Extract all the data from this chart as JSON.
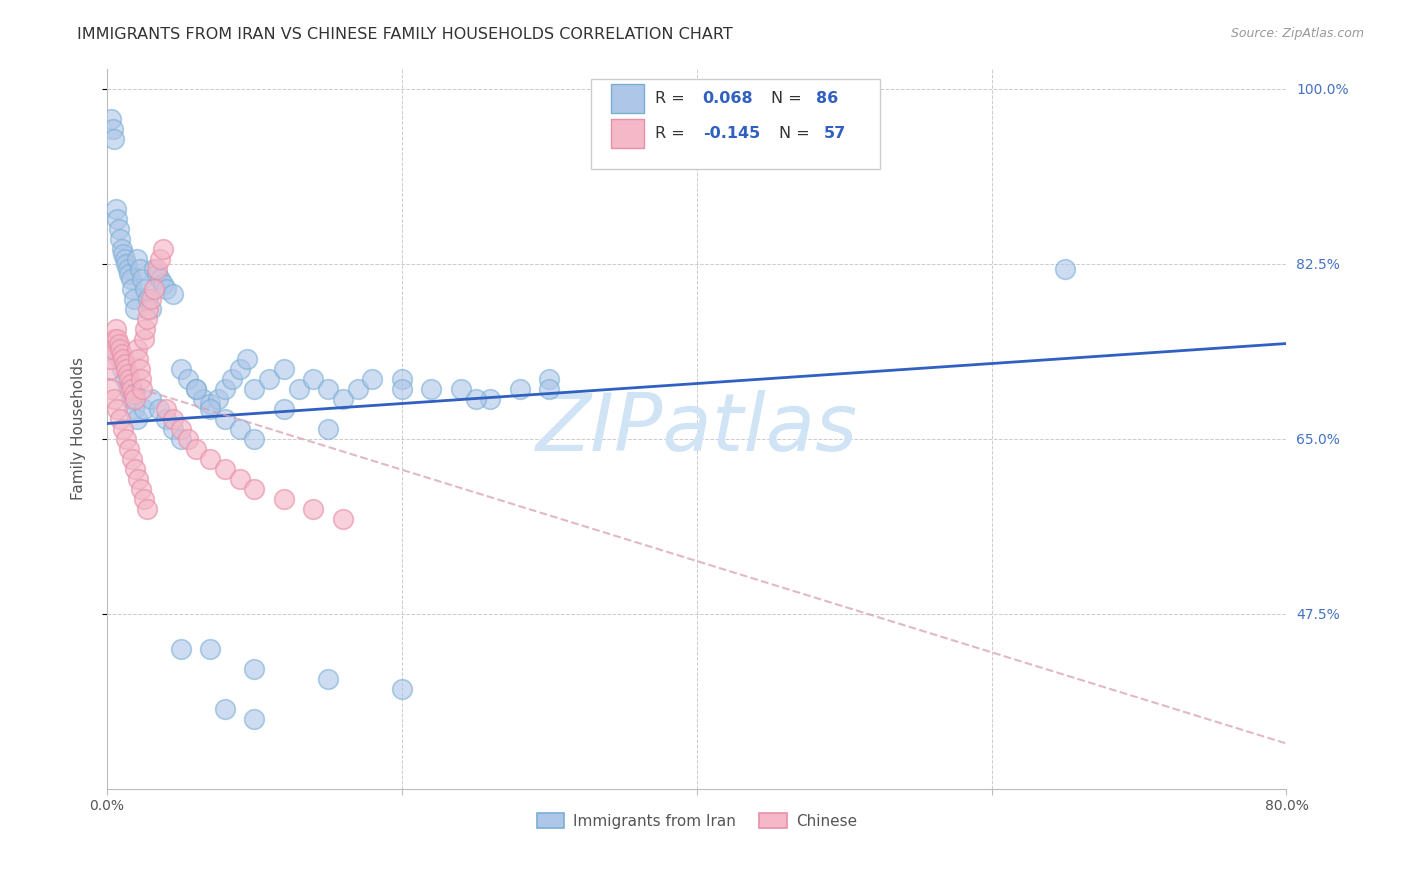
{
  "title": "IMMIGRANTS FROM IRAN VS CHINESE FAMILY HOUSEHOLDS CORRELATION CHART",
  "source": "Source: ZipAtlas.com",
  "ylabel": "Family Households",
  "watermark": "ZIPatlas",
  "x_min": 0.0,
  "x_max": 0.8,
  "y_min": 0.3,
  "y_max": 1.02,
  "y_ticks": [
    0.475,
    0.65,
    0.825,
    1.0
  ],
  "y_tick_labels": [
    "47.5%",
    "65.0%",
    "82.5%",
    "100.0%"
  ],
  "iran_color_fill": "#aec6e8",
  "iran_color_edge": "#7aafd4",
  "chinese_color_fill": "#f4b8c8",
  "chinese_color_edge": "#e890a8",
  "iran_line_color": "#3060c0",
  "chinese_line_color": "#d8a0b8",
  "legend_blue_color": "#4472c4",
  "legend_r_color": "#3060c0",
  "title_fontsize": 11.5,
  "source_fontsize": 9,
  "tick_fontsize": 10,
  "label_fontsize": 11,
  "background_color": "#ffffff",
  "grid_color": "#cccccc",
  "right_tick_color": "#4472c4",
  "watermark_color": "#d0e4f5",
  "watermark_fontsize": 58,
  "iran_x": [
    0.003,
    0.004,
    0.005,
    0.006,
    0.007,
    0.008,
    0.009,
    0.01,
    0.011,
    0.012,
    0.013,
    0.014,
    0.015,
    0.016,
    0.017,
    0.018,
    0.019,
    0.02,
    0.022,
    0.024,
    0.026,
    0.028,
    0.03,
    0.032,
    0.034,
    0.036,
    0.038,
    0.04,
    0.045,
    0.05,
    0.055,
    0.06,
    0.065,
    0.07,
    0.075,
    0.08,
    0.085,
    0.09,
    0.095,
    0.1,
    0.11,
    0.12,
    0.13,
    0.14,
    0.15,
    0.16,
    0.17,
    0.18,
    0.2,
    0.22,
    0.24,
    0.26,
    0.28,
    0.3,
    0.006,
    0.008,
    0.01,
    0.012,
    0.014,
    0.016,
    0.018,
    0.02,
    0.025,
    0.03,
    0.035,
    0.04,
    0.045,
    0.05,
    0.06,
    0.07,
    0.08,
    0.09,
    0.1,
    0.12,
    0.15,
    0.2,
    0.25,
    0.3,
    0.05,
    0.07,
    0.1,
    0.15,
    0.2,
    0.65,
    0.08,
    0.1
  ],
  "iran_y": [
    0.97,
    0.96,
    0.95,
    0.88,
    0.87,
    0.86,
    0.85,
    0.84,
    0.835,
    0.83,
    0.825,
    0.82,
    0.815,
    0.81,
    0.8,
    0.79,
    0.78,
    0.83,
    0.82,
    0.81,
    0.8,
    0.79,
    0.78,
    0.82,
    0.815,
    0.81,
    0.805,
    0.8,
    0.795,
    0.72,
    0.71,
    0.7,
    0.69,
    0.685,
    0.69,
    0.7,
    0.71,
    0.72,
    0.73,
    0.7,
    0.71,
    0.72,
    0.7,
    0.71,
    0.7,
    0.69,
    0.7,
    0.71,
    0.71,
    0.7,
    0.7,
    0.69,
    0.7,
    0.71,
    0.74,
    0.73,
    0.72,
    0.71,
    0.7,
    0.69,
    0.68,
    0.67,
    0.68,
    0.69,
    0.68,
    0.67,
    0.66,
    0.65,
    0.7,
    0.68,
    0.67,
    0.66,
    0.65,
    0.68,
    0.66,
    0.7,
    0.69,
    0.7,
    0.44,
    0.44,
    0.42,
    0.41,
    0.4,
    0.82,
    0.38,
    0.37
  ],
  "chinese_x": [
    0.002,
    0.003,
    0.004,
    0.005,
    0.006,
    0.007,
    0.008,
    0.009,
    0.01,
    0.011,
    0.012,
    0.013,
    0.014,
    0.015,
    0.016,
    0.017,
    0.018,
    0.019,
    0.02,
    0.021,
    0.022,
    0.023,
    0.024,
    0.025,
    0.026,
    0.027,
    0.028,
    0.03,
    0.032,
    0.034,
    0.036,
    0.038,
    0.04,
    0.045,
    0.05,
    0.055,
    0.06,
    0.07,
    0.08,
    0.09,
    0.1,
    0.12,
    0.14,
    0.16,
    0.003,
    0.005,
    0.007,
    0.009,
    0.011,
    0.013,
    0.015,
    0.017,
    0.019,
    0.021,
    0.023,
    0.025,
    0.027
  ],
  "chinese_y": [
    0.72,
    0.73,
    0.74,
    0.75,
    0.76,
    0.75,
    0.745,
    0.74,
    0.735,
    0.73,
    0.725,
    0.72,
    0.715,
    0.71,
    0.705,
    0.7,
    0.695,
    0.69,
    0.74,
    0.73,
    0.72,
    0.71,
    0.7,
    0.75,
    0.76,
    0.77,
    0.78,
    0.79,
    0.8,
    0.82,
    0.83,
    0.84,
    0.68,
    0.67,
    0.66,
    0.65,
    0.64,
    0.63,
    0.62,
    0.61,
    0.6,
    0.59,
    0.58,
    0.57,
    0.7,
    0.69,
    0.68,
    0.67,
    0.66,
    0.65,
    0.64,
    0.63,
    0.62,
    0.61,
    0.6,
    0.59,
    0.58
  ],
  "iran_line_x0": 0.0,
  "iran_line_x1": 0.8,
  "iran_line_y0": 0.665,
  "iran_line_y1": 0.745,
  "chinese_line_x0": 0.0,
  "chinese_line_x1": 0.8,
  "chinese_line_y0": 0.71,
  "chinese_line_y1": 0.345
}
